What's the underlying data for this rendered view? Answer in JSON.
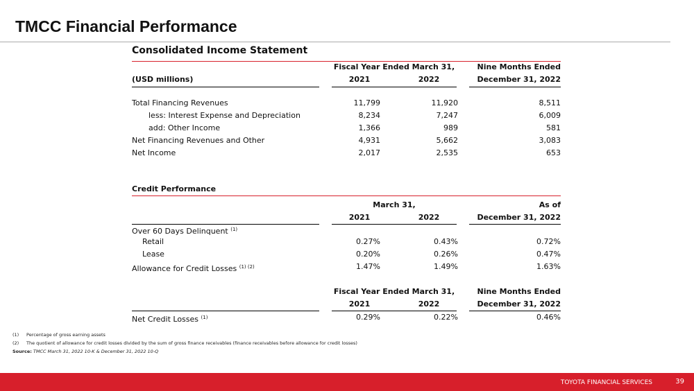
{
  "header": {
    "title": "TMCC Financial Performance"
  },
  "income_statement": {
    "title": "Consolidated Income Statement",
    "header_top": [
      "Fiscal Year Ended March 31,",
      "Nine Months Ended"
    ],
    "header": [
      "(USD millions)",
      "2021",
      "2022",
      "December 31, 2022"
    ],
    "rows": [
      [
        "Total Financing Revenues",
        "11,799",
        "11,920",
        "8,511"
      ],
      [
        "less:  Interest Expense and Depreciation",
        "8,234",
        "7,247",
        "6,009"
      ],
      [
        "add:  Other Income",
        "1,366",
        "989",
        "581"
      ],
      [
        "Net Financing Revenues and Other",
        "4,931",
        "5,662",
        "3,083"
      ],
      [
        "Net Income",
        "2,017",
        "2,535",
        "653"
      ]
    ]
  },
  "credit_performance": {
    "title": "Credit Performance",
    "header_top": [
      "March 31,",
      "As of"
    ],
    "header": [
      "2021",
      "2022",
      "December 31, 2022"
    ],
    "delinquent": {
      "label": "Over 60 Days Delinquent",
      "note": "(1)"
    },
    "rows": [
      [
        "Retail",
        "0.27%",
        "0.43%",
        "0.72%"
      ],
      [
        "Lease",
        "0.20%",
        "0.26%",
        "0.47%"
      ]
    ],
    "allowance": {
      "label": "Allowance for Credit Losses",
      "note": "(1) (2)",
      "values": [
        "1.47%",
        "1.49%",
        "1.63%"
      ]
    },
    "loss_header_top": [
      "Fiscal Year Ended March 31,",
      "Nine Months Ended"
    ],
    "loss_header": [
      "2021",
      "2022",
      "December 31, 2022"
    ],
    "net_credit_losses": {
      "label": "Net Credit Losses",
      "note": "(1)",
      "values": [
        "0.29%",
        "0.22%",
        "0.46%"
      ]
    }
  },
  "footnotes": [
    {
      "marker": "(1)",
      "text": "Percentage of gross earning assets"
    },
    {
      "marker": "(2)",
      "text": "The quotient of allowance for credit losses divided by the sum of gross finance receivables (finance receivables before allowance for credit losses)"
    }
  ],
  "source": {
    "label": "Source:",
    "text": "TMCC March 31, 2022 10-K & December 31, 2022 10-Q"
  },
  "footer": {
    "brand": "TOYOTA FINANCIAL SERVICES",
    "page": "39"
  }
}
